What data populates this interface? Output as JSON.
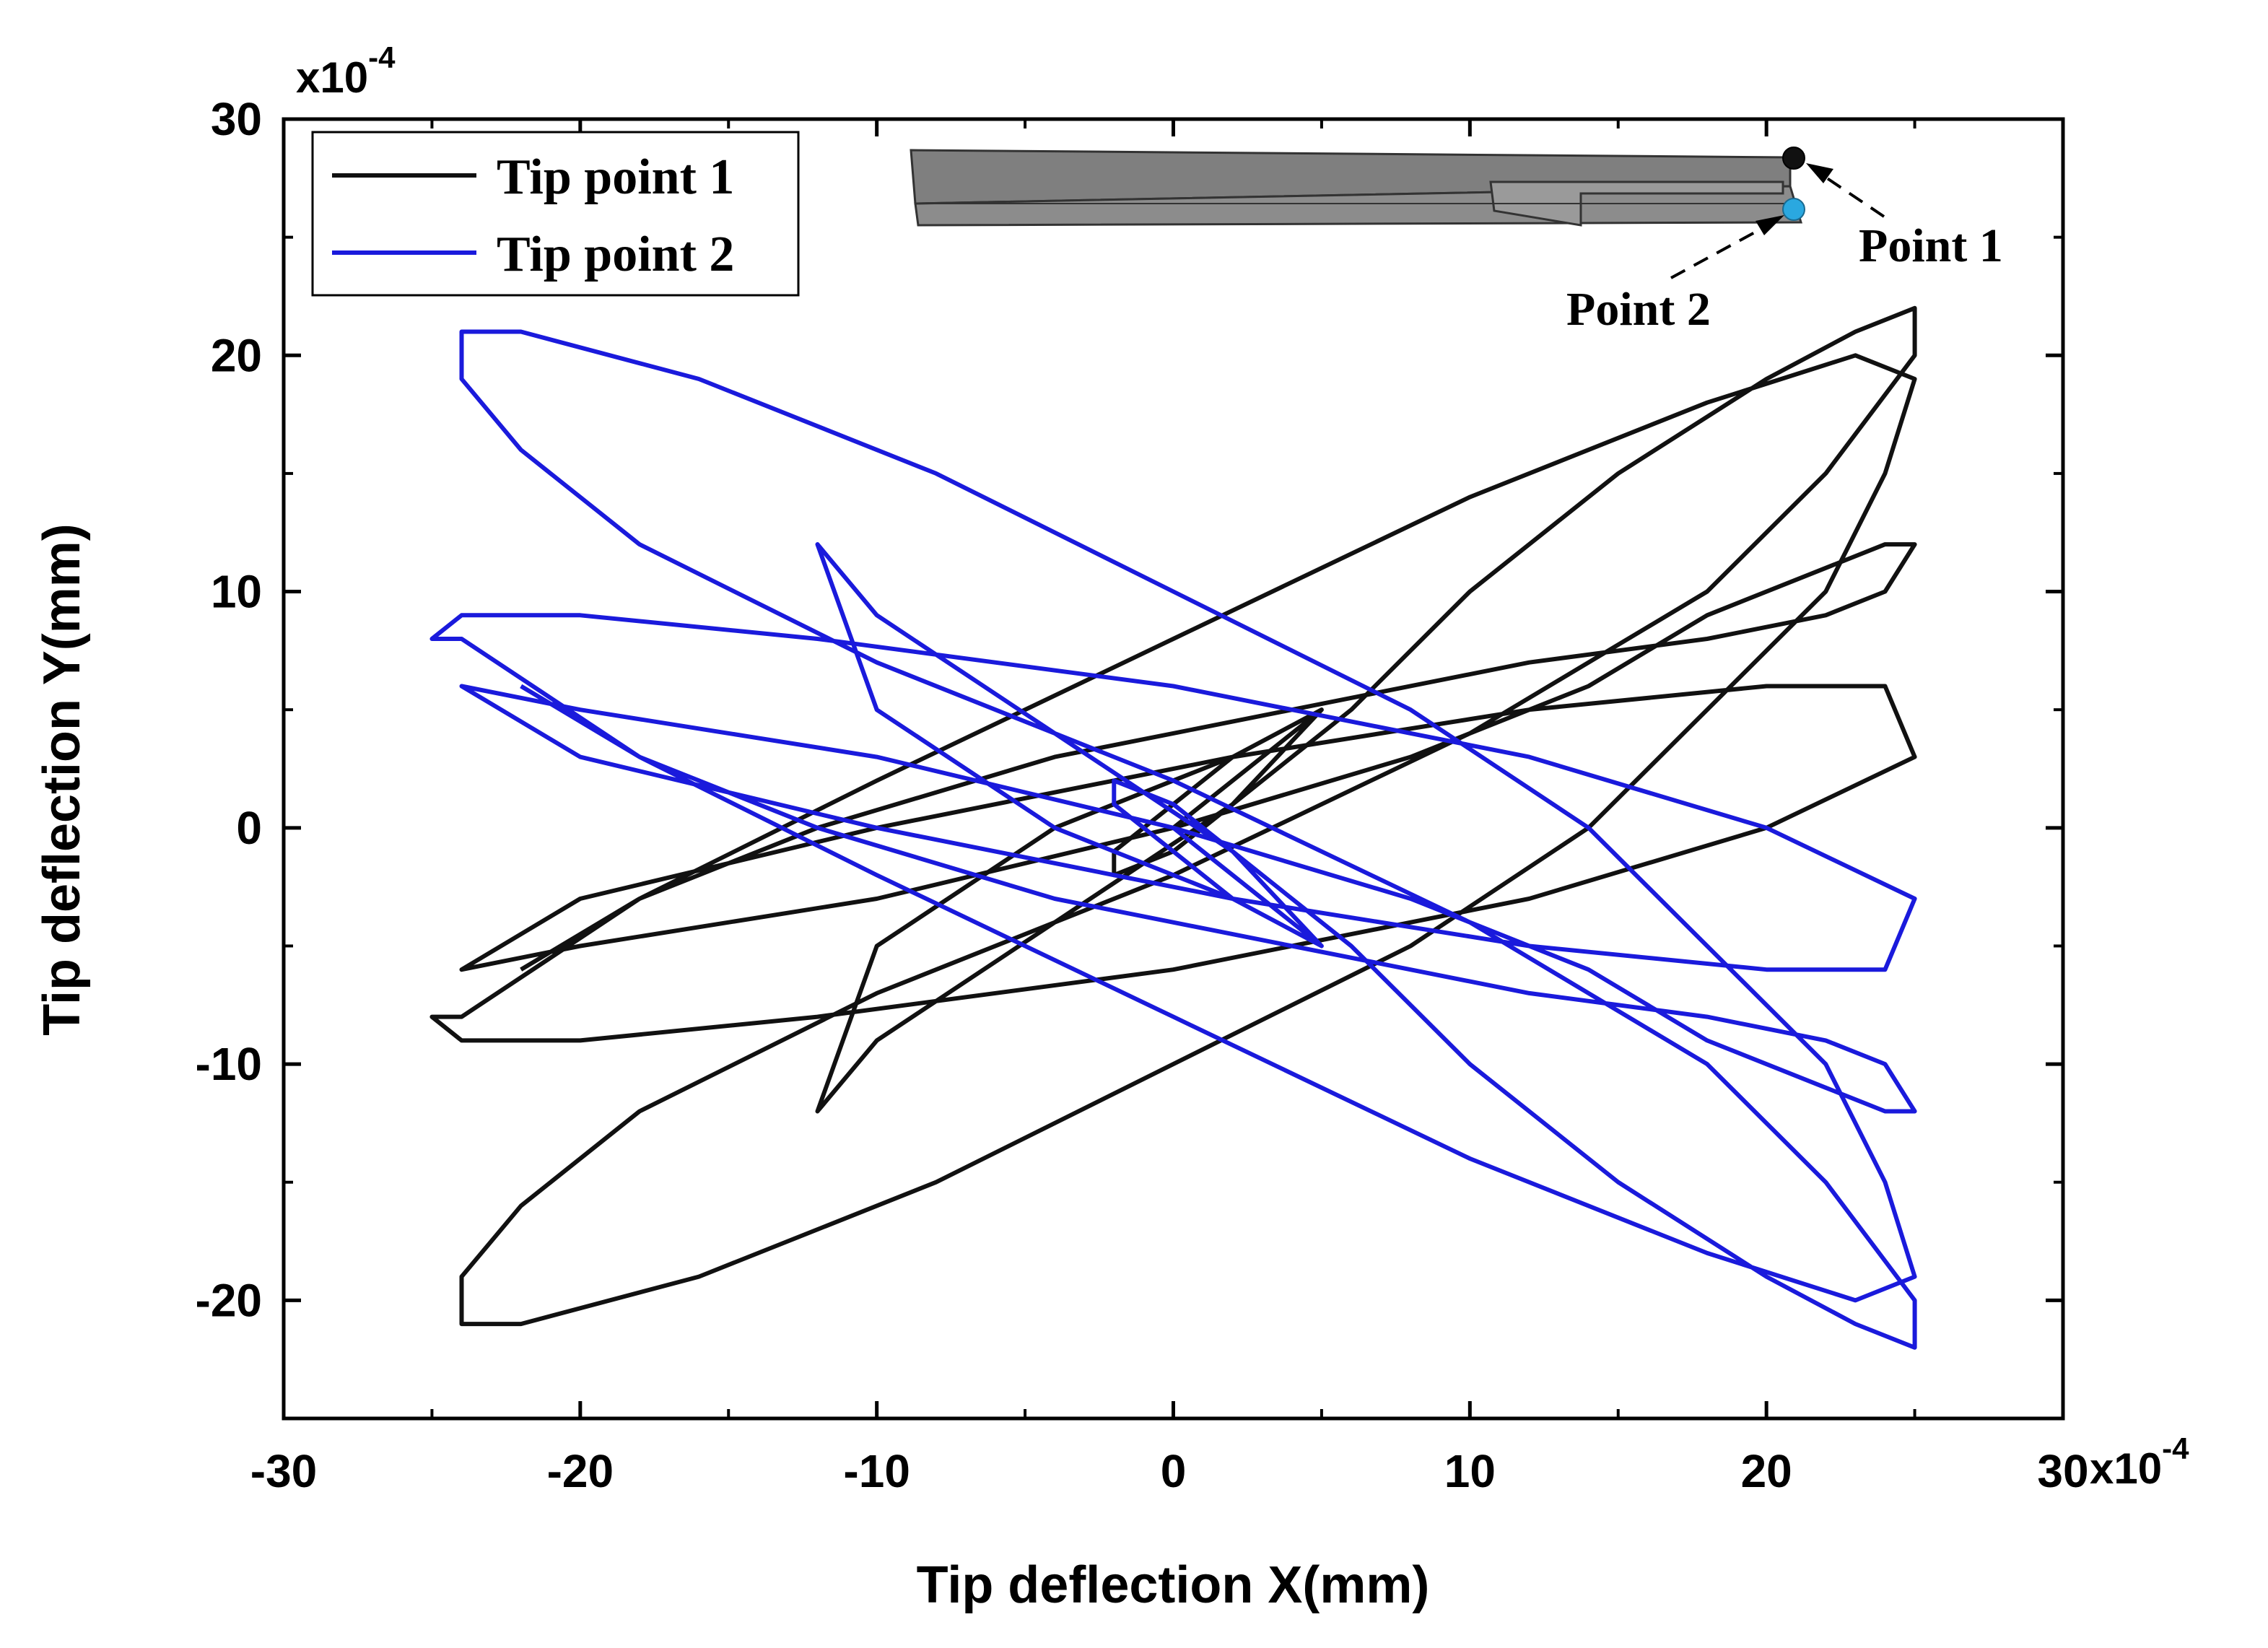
{
  "chart_data": {
    "type": "line",
    "title": "",
    "xlabel": "Tip deflection X(mm)",
    "ylabel": "Tip deflection Y(mm)",
    "x_multiplier": "x10",
    "x_exponent": "-4",
    "y_multiplier": "x10",
    "y_exponent": "-4",
    "xlim": [
      -30,
      30
    ],
    "ylim": [
      -25,
      30
    ],
    "x_ticks": [
      -30,
      -20,
      -10,
      0,
      10,
      20,
      30
    ],
    "y_ticks": [
      -20,
      -10,
      0,
      10,
      20,
      30
    ],
    "x_tick_labels": [
      "-30",
      "-20",
      "-10",
      "0",
      "10",
      "20",
      "30"
    ],
    "y_tick_labels": [
      "-20",
      "-10",
      "0",
      "10",
      "20",
      "30"
    ],
    "grid": false,
    "legend_position": "top-left",
    "series": [
      {
        "name": "Tip point 1",
        "color": "#111111",
        "x": [
          0,
          5,
          2,
          0,
          -2,
          -2,
          0,
          2,
          5,
          2,
          -4,
          -10,
          -12,
          -10,
          -4,
          2,
          6,
          10,
          15,
          20,
          23,
          25,
          25,
          22,
          18,
          10,
          0,
          -10,
          -18,
          -22,
          -24,
          -24,
          -22,
          -16,
          -8,
          0,
          8,
          14,
          18,
          22,
          24,
          25,
          23,
          18,
          10,
          0,
          -10,
          -18,
          -24,
          -25,
          -24,
          -20,
          -12,
          0,
          12,
          20,
          25,
          24,
          20,
          12,
          2,
          -10,
          -20,
          -24,
          -24,
          -20,
          -10,
          0,
          8,
          14,
          18,
          22,
          24,
          25,
          24,
          22,
          18,
          12,
          4,
          -4,
          -12,
          -18,
          -22
        ],
        "y": [
          0,
          5,
          3,
          1,
          -1,
          -2,
          -1,
          1,
          5,
          3,
          0,
          -5,
          -12,
          -9,
          -4,
          1,
          5,
          10,
          15,
          19,
          21,
          22,
          20,
          15,
          10,
          4,
          -2,
          -7,
          -12,
          -16,
          -19,
          -21,
          -21,
          -19,
          -15,
          -10,
          -5,
          0,
          5,
          10,
          15,
          19,
          20,
          18,
          14,
          8,
          2,
          -3,
          -8,
          -8,
          -9,
          -9,
          -8,
          -6,
          -3,
          0,
          3,
          6,
          6,
          5,
          3,
          0,
          -3,
          -6,
          -6,
          -5,
          -3,
          0,
          3,
          6,
          9,
          11,
          12,
          12,
          10,
          9,
          8,
          7,
          5,
          3,
          0,
          -3,
          -6
        ]
      },
      {
        "name": "Tip point 2",
        "color": "#1a1adc",
        "x": [
          0,
          5,
          2,
          0,
          -2,
          -2,
          0,
          2,
          5,
          2,
          -4,
          -10,
          -12,
          -10,
          -4,
          2,
          6,
          10,
          15,
          20,
          23,
          25,
          25,
          22,
          18,
          10,
          0,
          -10,
          -18,
          -22,
          -24,
          -24,
          -22,
          -16,
          -8,
          0,
          8,
          14,
          18,
          22,
          24,
          25,
          23,
          18,
          10,
          0,
          -10,
          -18,
          -24,
          -25,
          -24,
          -20,
          -12,
          0,
          12,
          20,
          25,
          24,
          20,
          12,
          2,
          -10,
          -20,
          -24,
          -24,
          -20,
          -10,
          0,
          8,
          14,
          18,
          22,
          24,
          25,
          24,
          22,
          18,
          12,
          4,
          -4,
          -12,
          -18,
          -22
        ],
        "y": [
          0,
          -5,
          -3,
          -1,
          1,
          2,
          1,
          -1,
          -5,
          -3,
          0,
          5,
          12,
          9,
          4,
          -1,
          -5,
          -10,
          -15,
          -19,
          -21,
          -22,
          -20,
          -15,
          -10,
          -4,
          2,
          7,
          12,
          16,
          19,
          21,
          21,
          19,
          15,
          10,
          5,
          0,
          -5,
          -10,
          -15,
          -19,
          -20,
          -18,
          -14,
          -8,
          -2,
          3,
          8,
          8,
          9,
          9,
          8,
          6,
          3,
          0,
          -3,
          -6,
          -6,
          -5,
          -3,
          0,
          3,
          6,
          6,
          5,
          3,
          0,
          -3,
          -6,
          -9,
          -11,
          -12,
          -12,
          -10,
          -9,
          -8,
          -7,
          -5,
          -3,
          0,
          3,
          6
        ]
      }
    ],
    "annotations": [
      "Point 1",
      "Point 2"
    ]
  },
  "legend": {
    "series1_label": "Tip point 1",
    "series2_label": "Tip point 2"
  },
  "inset": {
    "point1_label": "Point 1",
    "point2_label": "Point 2",
    "point1_color": "#111111",
    "point2_color": "#2aa8e0"
  }
}
